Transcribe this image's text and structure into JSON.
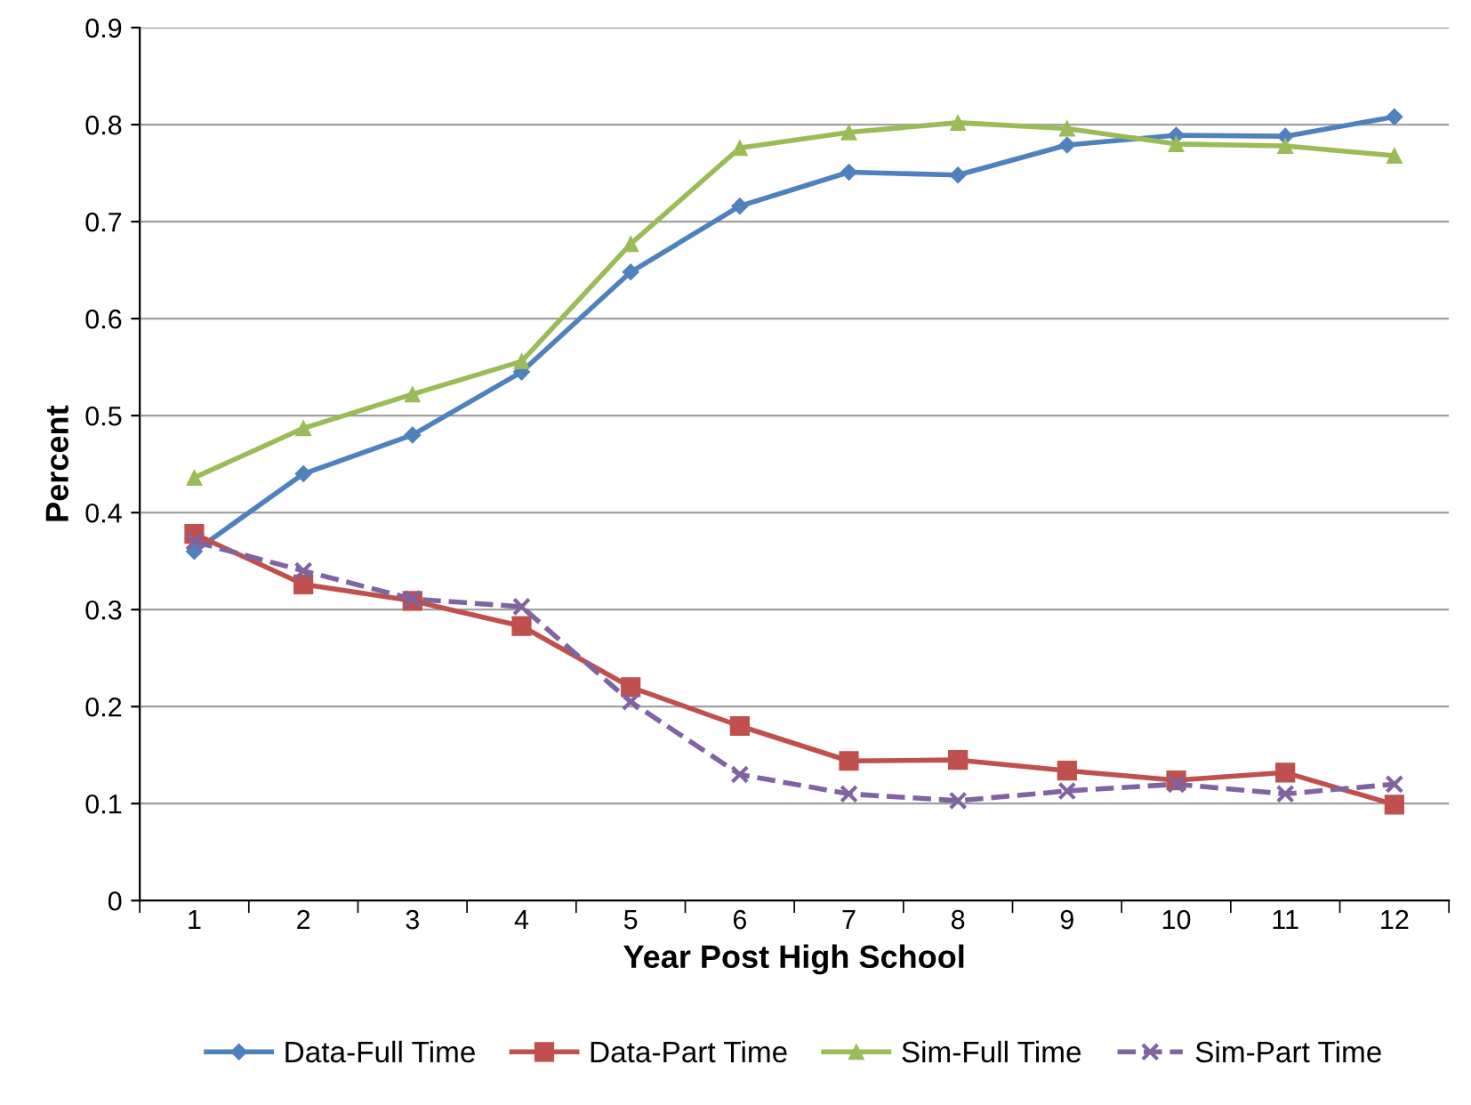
{
  "chart_data": {
    "type": "line",
    "xlabel": "Year Post High School",
    "ylabel": "Percent",
    "categories": [
      "1",
      "2",
      "3",
      "4",
      "5",
      "6",
      "7",
      "8",
      "9",
      "10",
      "11",
      "12"
    ],
    "series": [
      {
        "name": "Data-Full Time",
        "color": "#4f81bd",
        "marker": "diamond",
        "line_style": "solid",
        "values": [
          0.36,
          0.44,
          0.48,
          0.545,
          0.648,
          0.716,
          0.751,
          0.748,
          0.779,
          0.789,
          0.788,
          0.808
        ]
      },
      {
        "name": "Data-Part Time",
        "color": "#c0504d",
        "marker": "square",
        "line_style": "solid",
        "values": [
          0.378,
          0.326,
          0.309,
          0.283,
          0.22,
          0.18,
          0.144,
          0.145,
          0.134,
          0.124,
          0.132,
          0.099
        ]
      },
      {
        "name": "Sim-Full Time",
        "color": "#9bbb59",
        "marker": "triangle",
        "line_style": "solid",
        "values": [
          0.436,
          0.487,
          0.522,
          0.556,
          0.677,
          0.776,
          0.792,
          0.802,
          0.796,
          0.78,
          0.778,
          0.768
        ]
      },
      {
        "name": "Sim-Part Time",
        "color": "#8064a2",
        "marker": "cross",
        "line_style": "dashed",
        "values": [
          0.37,
          0.34,
          0.311,
          0.303,
          0.205,
          0.13,
          0.11,
          0.103,
          0.113,
          0.12,
          0.11,
          0.12
        ]
      }
    ],
    "ylim": [
      0,
      0.9
    ],
    "yticks": [
      0,
      0.1,
      0.2,
      0.3,
      0.4,
      0.5,
      0.6,
      0.7,
      0.8,
      0.9
    ],
    "grid": "y",
    "legend": "bottom"
  }
}
